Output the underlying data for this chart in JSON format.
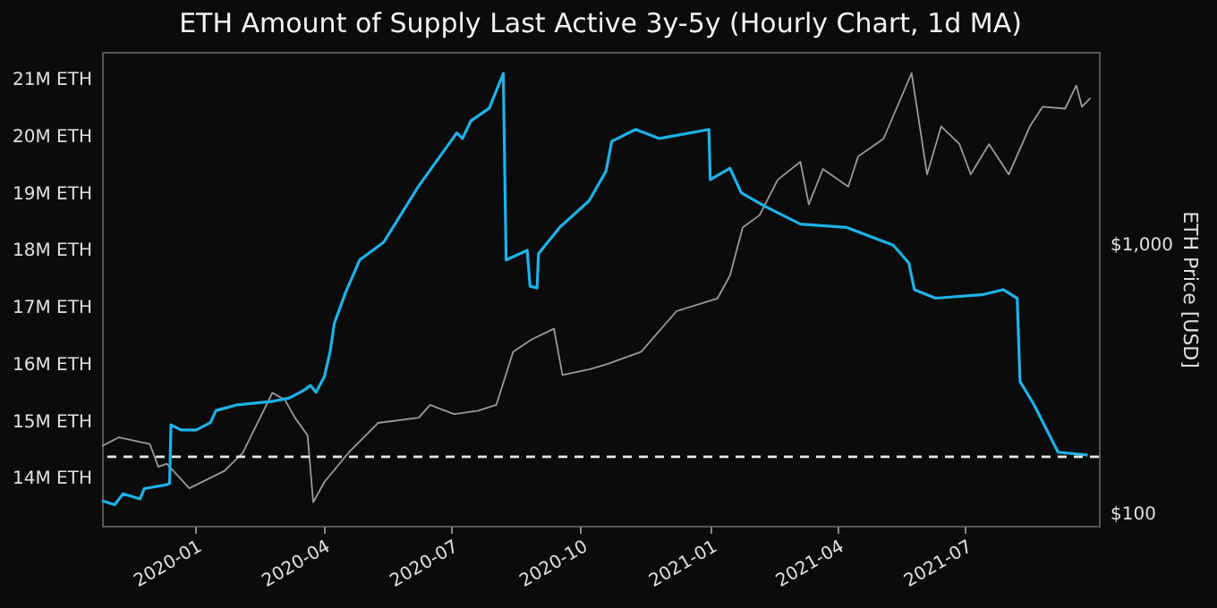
{
  "chart_data": {
    "type": "line",
    "title": "ETH Amount of Supply Last Active 3y-5y (Hourly Chart, 1d MA)",
    "y2label": "ETH Price [USD]",
    "xlim": [
      "2019-10-27",
      "2021-10-04"
    ],
    "xticks": [
      {
        "value": "2020-01-01",
        "label": "2020-01"
      },
      {
        "value": "2020-04-01",
        "label": "2020-04"
      },
      {
        "value": "2020-07-01",
        "label": "2020-07"
      },
      {
        "value": "2020-10-01",
        "label": "2020-10"
      },
      {
        "value": "2021-01-01",
        "label": "2021-01"
      },
      {
        "value": "2021-04-01",
        "label": "2021-04"
      },
      {
        "value": "2021-07-01",
        "label": "2021-07"
      }
    ],
    "ylim": [
      13.16,
      21.47
    ],
    "yticks": [
      {
        "value": 14,
        "label": "14M ETH"
      },
      {
        "value": 15,
        "label": "15M ETH"
      },
      {
        "value": 16,
        "label": "16M ETH"
      },
      {
        "value": 17,
        "label": "17M ETH"
      },
      {
        "value": 18,
        "label": "18M ETH"
      },
      {
        "value": 19,
        "label": "19M ETH"
      },
      {
        "value": 20,
        "label": "20M ETH"
      },
      {
        "value": 21,
        "label": "21M ETH"
      }
    ],
    "y2lim": [
      90,
      5200
    ],
    "y2ticks": [
      {
        "value": 100,
        "label": "$100"
      },
      {
        "value": 1000,
        "label": "$1,000"
      }
    ],
    "log": "y2",
    "grid": false,
    "marker": "none",
    "ref_lines": [
      {
        "axis": "y",
        "value": 14.37,
        "color": "#e8e8e8",
        "line_style": "dashed"
      }
    ],
    "series": [
      {
        "color": "#9a9a9a",
        "axis": "y2",
        "x": [
          "2019-10-27",
          "2019-11-08",
          "2019-11-30",
          "2019-12-06",
          "2019-12-12",
          "2019-12-28",
          "2020-01-22",
          "2020-02-04",
          "2020-02-25",
          "2020-03-05",
          "2020-03-12",
          "2020-03-21",
          "2020-03-25",
          "2020-04-02",
          "2020-04-19",
          "2020-05-10",
          "2020-06-08",
          "2020-06-16",
          "2020-07-03",
          "2020-07-20",
          "2020-08-02",
          "2020-08-14",
          "2020-08-27",
          "2020-09-12",
          "2020-09-18",
          "2020-10-07",
          "2020-10-19",
          "2020-11-13",
          "2020-12-08",
          "2021-01-06",
          "2021-01-15",
          "2021-01-24",
          "2021-02-05",
          "2021-02-18",
          "2021-03-06",
          "2021-03-12",
          "2021-03-22",
          "2021-04-09",
          "2021-04-16",
          "2021-05-04",
          "2021-05-24",
          "2021-06-04",
          "2021-06-14",
          "2021-06-27",
          "2021-07-05",
          "2021-07-18",
          "2021-08-01",
          "2021-08-16",
          "2021-08-25",
          "2021-09-10",
          "2021-09-18",
          "2021-09-22",
          "2021-09-28"
        ],
        "values": [
          178,
          192,
          181,
          149,
          153,
          124,
          144,
          168,
          281,
          264,
          227,
          195,
          110,
          131,
          168,
          217,
          227,
          253,
          234,
          241,
          253,
          399,
          443,
          486,
          327,
          343,
          358,
          399,
          565,
          629,
          766,
          1156,
          1285,
          1742,
          2028,
          1408,
          1908,
          1640,
          2122,
          2470,
          4335,
          1822,
          2748,
          2360,
          1822,
          2360,
          1822,
          2748,
          3250,
          3198,
          3899,
          3250,
          3506
        ]
      },
      {
        "color": "#1fb2e8",
        "x": [
          "2019-10-27",
          "2019-11-05",
          "2019-11-11",
          "2019-11-23",
          "2019-11-26",
          "2019-12-12",
          "2019-12-14",
          "2019-12-15",
          "2019-12-22",
          "2020-01-02",
          "2020-01-12",
          "2020-01-16",
          "2020-01-31",
          "2020-02-25",
          "2020-03-08",
          "2020-03-18",
          "2020-03-23",
          "2020-03-27",
          "2020-04-02",
          "2020-04-06",
          "2020-04-09",
          "2020-04-17",
          "2020-04-27",
          "2020-05-14",
          "2020-06-08",
          "2020-07-05",
          "2020-07-09",
          "2020-07-15",
          "2020-07-28",
          "2020-08-07",
          "2020-08-09",
          "2020-08-24",
          "2020-08-26",
          "2020-08-31",
          "2020-09-01",
          "2020-09-16",
          "2020-10-07",
          "2020-10-19",
          "2020-10-23",
          "2020-11-09",
          "2020-11-26",
          "2020-12-31",
          "2021-01-01",
          "2021-01-15",
          "2021-01-23",
          "2021-02-09",
          "2021-03-06",
          "2021-04-08",
          "2021-05-11",
          "2021-05-22",
          "2021-05-26",
          "2021-06-10",
          "2021-07-13",
          "2021-07-28",
          "2021-08-07",
          "2021-08-09",
          "2021-08-19",
          "2021-09-05",
          "2021-09-26"
        ],
        "values": [
          13.6,
          13.53,
          13.72,
          13.63,
          13.81,
          13.88,
          13.9,
          14.93,
          14.84,
          14.84,
          14.97,
          15.18,
          15.28,
          15.34,
          15.4,
          15.53,
          15.62,
          15.5,
          15.78,
          16.21,
          16.71,
          17.25,
          17.82,
          18.13,
          19.12,
          20.05,
          19.95,
          20.26,
          20.48,
          21.09,
          17.82,
          17.99,
          17.36,
          17.33,
          17.93,
          18.39,
          18.86,
          19.38,
          19.9,
          20.11,
          19.95,
          20.11,
          19.23,
          19.43,
          19.0,
          18.76,
          18.45,
          18.39,
          18.08,
          17.77,
          17.3,
          17.15,
          17.21,
          17.3,
          17.15,
          15.69,
          15.28,
          14.45,
          14.4
        ]
      }
    ]
  }
}
